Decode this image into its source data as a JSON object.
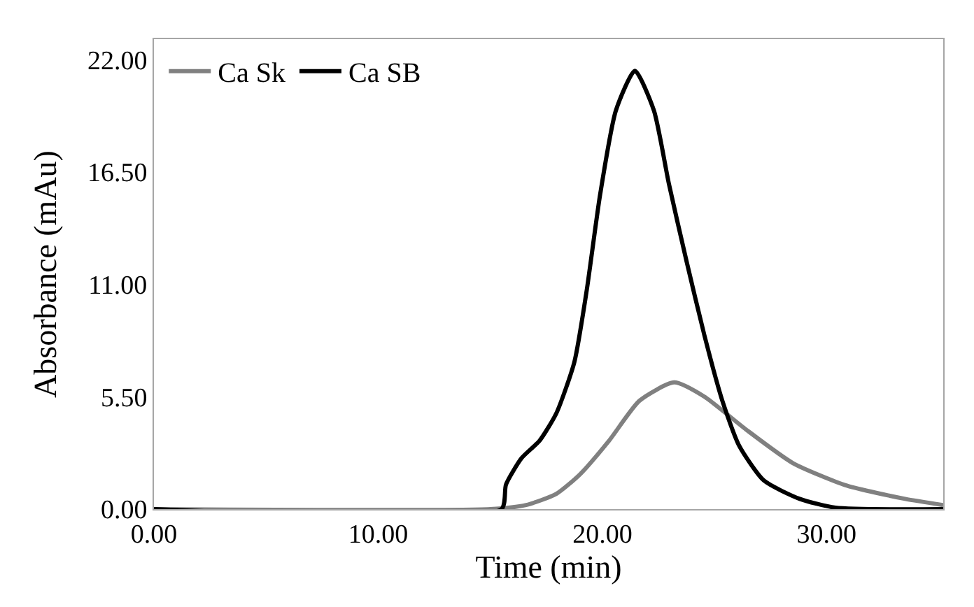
{
  "chart_data": {
    "type": "line",
    "xlabel": "Time (min)",
    "ylabel": "Absorbance (mAu)",
    "xlim": [
      0,
      35.2
    ],
    "ylim": [
      0,
      23
    ],
    "xticks": [
      {
        "value": 0,
        "label": "0.00"
      },
      {
        "value": 10,
        "label": "10.00"
      },
      {
        "value": 20,
        "label": "20.00"
      },
      {
        "value": 30,
        "label": "30.00"
      }
    ],
    "yticks": [
      {
        "value": 0,
        "label": "0.00"
      },
      {
        "value": 5.5,
        "label": "5.50"
      },
      {
        "value": 11,
        "label": "11.00"
      },
      {
        "value": 16.5,
        "label": "16.50"
      },
      {
        "value": 22,
        "label": "22.00"
      }
    ],
    "legend": "top left",
    "marker": "none",
    "line_style": "solid",
    "series": [
      {
        "name": "Ca Sk",
        "color": "#808080",
        "x": [
          0,
          15,
          16.6,
          17.95,
          19,
          20.3,
          21.65,
          23.2,
          24.55,
          26.4,
          28.5,
          30.9,
          33.5,
          35.2
        ],
        "values": [
          0,
          0,
          0.2,
          0.75,
          1.7,
          3.35,
          5.3,
          6.2,
          5.5,
          3.9,
          2.25,
          1.15,
          0.5,
          0.2
        ]
      },
      {
        "name": "Ca SB",
        "color": "#000000",
        "x": [
          0,
          15.5,
          15.7,
          16.4,
          17.2,
          17.95,
          18.75,
          19.3,
          19.9,
          20.6,
          21.45,
          22.3,
          22.97,
          23.76,
          24.55,
          25.35,
          26.1,
          27.2,
          28.8,
          30.4,
          35.2
        ],
        "values": [
          0,
          0,
          1.2,
          2.5,
          3.35,
          4.7,
          7.2,
          10.7,
          15.4,
          19.5,
          21.45,
          19.5,
          15.9,
          12.1,
          8.5,
          5.3,
          3.1,
          1.4,
          0.5,
          0.07,
          0
        ]
      }
    ]
  }
}
